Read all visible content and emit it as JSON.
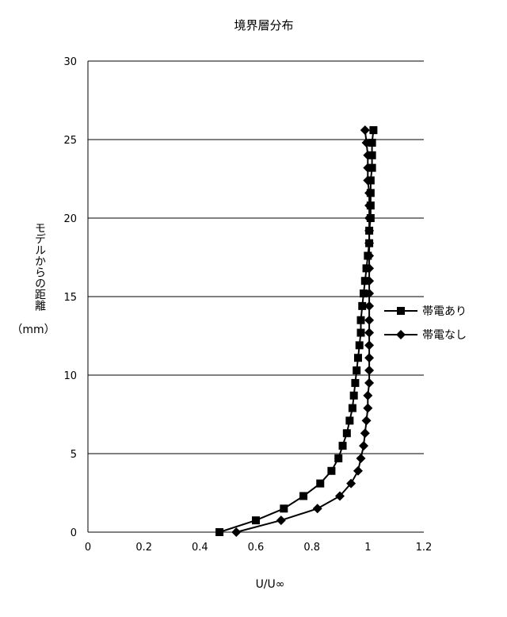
{
  "chart_data": {
    "type": "line",
    "title": "境界層分布",
    "xlabel": "U/U∞",
    "ylabel": "モデルからの距離",
    "ylabel_unit": "（mm）",
    "xlim": [
      0,
      1.2
    ],
    "ylim": [
      0,
      30
    ],
    "x_ticks": [
      "0",
      "0.2",
      "0.4",
      "0.6",
      "0.8",
      "1",
      "1.2"
    ],
    "y_ticks": [
      "0",
      "5",
      "10",
      "15",
      "20",
      "25",
      "30"
    ],
    "grid": "horizontal",
    "legend_position": "right",
    "series": [
      {
        "name": "帯電あり",
        "marker": "square",
        "points": [
          [
            0.47,
            0
          ],
          [
            0.6,
            0.75
          ],
          [
            0.7,
            1.5
          ],
          [
            0.77,
            2.3
          ],
          [
            0.83,
            3.1
          ],
          [
            0.87,
            3.9
          ],
          [
            0.895,
            4.7
          ],
          [
            0.91,
            5.5
          ],
          [
            0.925,
            6.3
          ],
          [
            0.935,
            7.1
          ],
          [
            0.945,
            7.9
          ],
          [
            0.95,
            8.7
          ],
          [
            0.955,
            9.5
          ],
          [
            0.96,
            10.3
          ],
          [
            0.965,
            11.1
          ],
          [
            0.97,
            11.9
          ],
          [
            0.975,
            12.7
          ],
          [
            0.975,
            13.5
          ],
          [
            0.98,
            14.4
          ],
          [
            0.985,
            15.2
          ],
          [
            0.99,
            16.0
          ],
          [
            0.995,
            16.8
          ],
          [
            1.0,
            17.6
          ],
          [
            1.005,
            18.4
          ],
          [
            1.005,
            19.2
          ],
          [
            1.01,
            20.0
          ],
          [
            1.01,
            20.8
          ],
          [
            1.01,
            21.6
          ],
          [
            1.01,
            22.4
          ],
          [
            1.015,
            23.2
          ],
          [
            1.015,
            24.0
          ],
          [
            1.015,
            24.8
          ],
          [
            1.02,
            25.6
          ]
        ]
      },
      {
        "name": "帯電なし",
        "marker": "diamond",
        "points": [
          [
            0.53,
            0
          ],
          [
            0.69,
            0.75
          ],
          [
            0.82,
            1.5
          ],
          [
            0.9,
            2.3
          ],
          [
            0.94,
            3.1
          ],
          [
            0.965,
            3.9
          ],
          [
            0.975,
            4.7
          ],
          [
            0.985,
            5.5
          ],
          [
            0.99,
            6.3
          ],
          [
            0.995,
            7.1
          ],
          [
            1.0,
            7.9
          ],
          [
            1.0,
            8.7
          ],
          [
            1.005,
            9.5
          ],
          [
            1.005,
            10.3
          ],
          [
            1.005,
            11.1
          ],
          [
            1.005,
            11.9
          ],
          [
            1.005,
            12.7
          ],
          [
            1.005,
            13.5
          ],
          [
            1.005,
            14.4
          ],
          [
            1.005,
            15.2
          ],
          [
            1.005,
            16.0
          ],
          [
            1.005,
            16.8
          ],
          [
            1.005,
            17.6
          ],
          [
            1.005,
            18.4
          ],
          [
            1.005,
            19.2
          ],
          [
            1.005,
            20.0
          ],
          [
            1.005,
            20.8
          ],
          [
            1.005,
            21.6
          ],
          [
            1.0,
            22.4
          ],
          [
            1.0,
            23.2
          ],
          [
            1.0,
            24.0
          ],
          [
            0.995,
            24.8
          ],
          [
            0.99,
            25.6
          ]
        ]
      }
    ]
  }
}
